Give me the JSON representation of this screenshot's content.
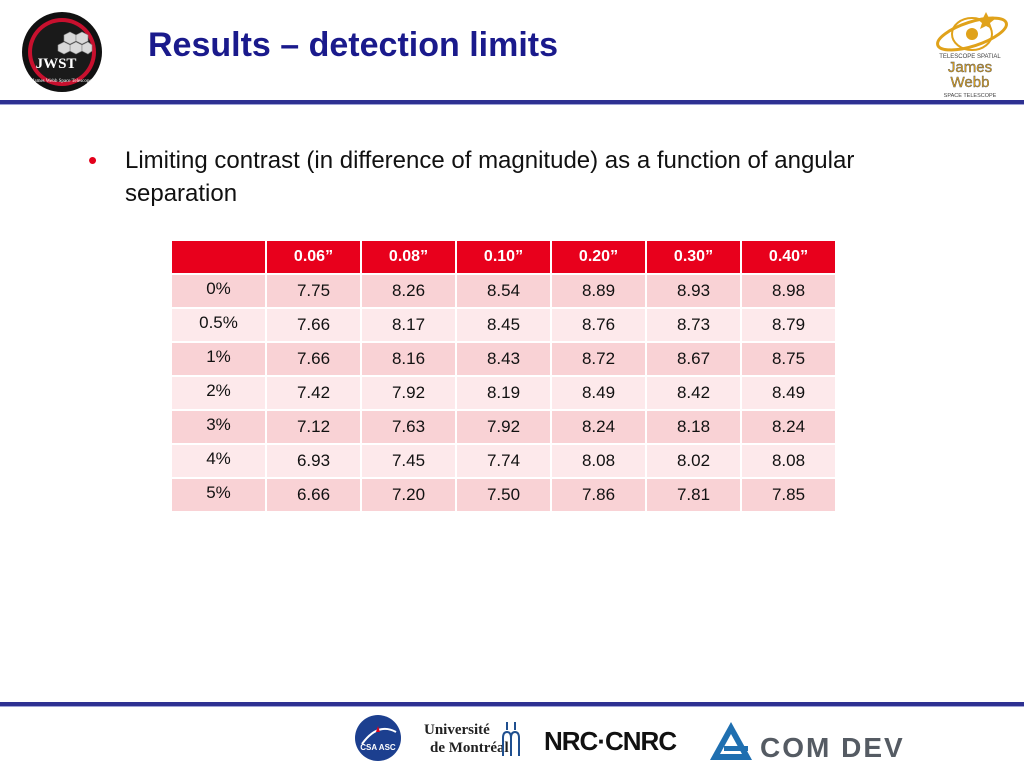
{
  "slide": {
    "title": "Results – detection limits",
    "logos": {
      "left": "jwst-logo",
      "right": "james-webb-space-telescope-logo",
      "right_lines": [
        "TELESCOPE SPATIAL",
        "James",
        "Webb",
        "SPACE TELESCOPE"
      ],
      "left_lines": [
        "JWST",
        "James Webb Space Telescope"
      ]
    },
    "bullet": {
      "text": "Limiting contrast (in difference of magnitude) as a function of angular separation"
    },
    "table": {
      "corner": "",
      "columns": [
        "0.06”",
        "0.08”",
        "0.10”",
        "0.20”",
        "0.30”",
        "0.40”"
      ],
      "rows": [
        {
          "label": "0%",
          "values": [
            "7.75",
            "8.26",
            "8.54",
            "8.89",
            "8.93",
            "8.98"
          ]
        },
        {
          "label": "0.5%",
          "values": [
            "7.66",
            "8.17",
            "8.45",
            "8.76",
            "8.73",
            "8.79"
          ]
        },
        {
          "label": "1%",
          "values": [
            "7.66",
            "8.16",
            "8.43",
            "8.72",
            "8.67",
            "8.75"
          ]
        },
        {
          "label": "2%",
          "values": [
            "7.42",
            "7.92",
            "8.19",
            "8.49",
            "8.42",
            "8.49"
          ]
        },
        {
          "label": "3%",
          "values": [
            "7.12",
            "7.63",
            "7.92",
            "8.24",
            "8.18",
            "8.24"
          ]
        },
        {
          "label": "4%",
          "values": [
            "6.93",
            "7.45",
            "7.74",
            "8.08",
            "8.02",
            "8.08"
          ]
        },
        {
          "label": "5%",
          "values": [
            "6.66",
            "7.20",
            "7.50",
            "7.86",
            "7.81",
            "7.85"
          ]
        }
      ]
    },
    "footer_logos": {
      "csa": {
        "icon": "csa-asc-logo",
        "text": "CSA ASC"
      },
      "udem": {
        "icon": "universite-de-montreal-logo",
        "line1": "Université",
        "line2": "de Montréal"
      },
      "nrc": {
        "icon": "nrc-cnrc-logo",
        "text": "NRC·CNRC"
      },
      "comdev": {
        "icon": "com-dev-logo",
        "text": "COM DEV"
      }
    },
    "colors": {
      "title": "#1a1a8c",
      "rule": "#2e3192",
      "bullet": "#e3001b",
      "header_bg": "#e8001c",
      "row_odd": "#f9d2d5",
      "row_even": "#fde9eb"
    }
  }
}
